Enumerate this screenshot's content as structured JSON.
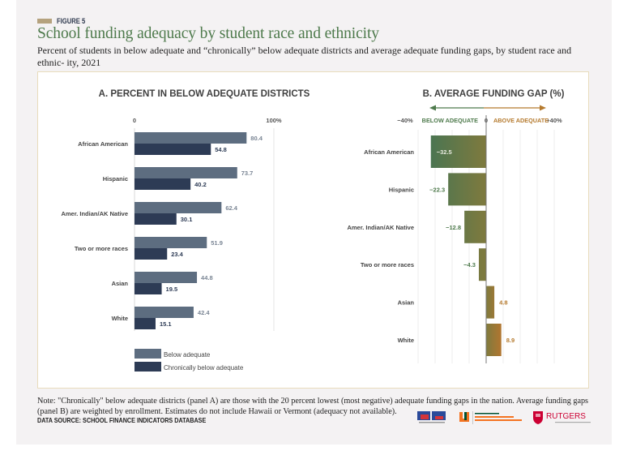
{
  "figure_label": "FIGURE 5",
  "title": "School funding adequacy by student race and ethnicity",
  "subtitle": "Percent of students in below adequate and “chronically” below adequate districts and average adequate funding gaps, by student race and ethnic- ity, 2021",
  "note": "Note: \"Chronically\" below adequate districts (panel A) are those with the 20 percent lowest (most negative) adequate funding gaps in the nation. Average funding gaps (panel B) are weighted by enrollment. Estimates do not include Hawaii or Vermont (adequacy not available).",
  "source": "DATA SOURCE: SCHOOL FINANCE INDICATORS DATABASE",
  "logos": [
    "Albert Shanker Institute",
    "University of Miami School of Education & Human Development",
    "Rutgers Graduate School of Education"
  ],
  "colors": {
    "below_adequate": "#5d6d80",
    "chronically_below": "#2d3b55",
    "gap_negative": "#4e7a4c",
    "gap_positive": "#b57a2e",
    "frame_border": "#e8dcbc",
    "figure_swatch": "#b5a27e"
  },
  "chart_data": [
    {
      "type": "bar",
      "orientation": "horizontal",
      "title": "A. PERCENT IN BELOW ADEQUATE DISTRICTS",
      "categories": [
        "African American",
        "Hispanic",
        "Amer. Indian/AK Native",
        "Two or more races",
        "Asian",
        "White"
      ],
      "series": [
        {
          "name": "Below adequate",
          "values": [
            80.4,
            73.7,
            62.4,
            51.9,
            44.8,
            42.4
          ]
        },
        {
          "name": "Chronically below adequate",
          "values": [
            54.8,
            40.2,
            30.1,
            23.4,
            19.5,
            15.1
          ]
        }
      ],
      "xlim": [
        0,
        100
      ],
      "tick_labels": [
        "0",
        "100%"
      ],
      "legend": "bottom-left",
      "grid": false
    },
    {
      "type": "bar",
      "orientation": "horizontal",
      "title": "B. AVERAGE FUNDING GAP (%)",
      "categories": [
        "African American",
        "Hispanic",
        "Amer. Indian/AK Native",
        "Two or more races",
        "Asian",
        "White"
      ],
      "values": [
        -32.5,
        -22.3,
        -12.8,
        -4.3,
        4.8,
        8.9
      ],
      "value_labels": [
        "−32.5",
        "−22.3",
        "−12.8",
        "−4.3",
        "4.8",
        "8.9"
      ],
      "xlim": [
        -40,
        40
      ],
      "tick_labels": [
        "−40%",
        "0",
        "+40%"
      ],
      "direction_labels": {
        "negative": "BELOW ADEQUATE",
        "positive": "ABOVE ADEQUATE"
      },
      "grid_step": 10,
      "grid": true
    }
  ]
}
